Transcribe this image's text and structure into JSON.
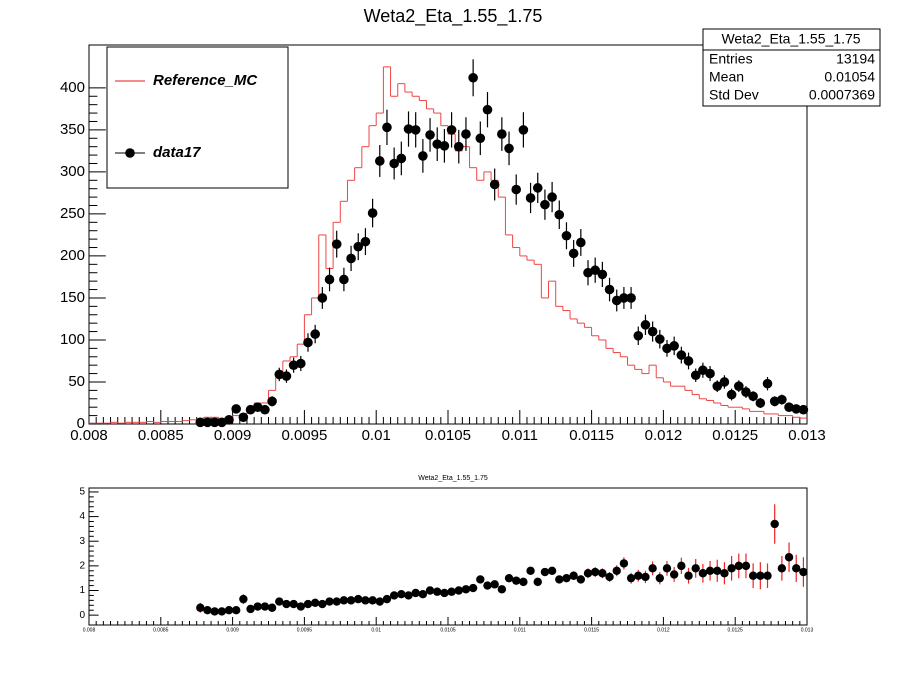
{
  "chart_data": [
    {
      "type": "hist_points",
      "title": "Weta2_Eta_1.55_1.75",
      "xlim": [
        0.008,
        0.013
      ],
      "xticks": [
        0.008,
        0.0085,
        0.009,
        0.0095,
        0.01,
        0.0105,
        0.011,
        0.0115,
        0.012,
        0.0125,
        0.013
      ],
      "ylim": [
        0,
        451
      ],
      "yticks": [
        0,
        50,
        100,
        150,
        200,
        250,
        300,
        350,
        400
      ],
      "legend": "top-left",
      "stats": {
        "title": "Weta2_Eta_1.55_1.75",
        "labels": [
          "Entries",
          "Mean",
          "Std Dev"
        ],
        "values": [
          13194,
          0.01054,
          0.0007369
        ]
      },
      "series": [
        {
          "name": "Reference_MC",
          "color": "#ee4444",
          "style": "step",
          "values": [
            1,
            1,
            1,
            2,
            1,
            2,
            2,
            2,
            3,
            2,
            3,
            3,
            3,
            4,
            5,
            6,
            8,
            8,
            6,
            7,
            10,
            12,
            15,
            25,
            25,
            40,
            55,
            75,
            80,
            95,
            130,
            150,
            225,
            185,
            240,
            265,
            290,
            305,
            330,
            355,
            370,
            425,
            390,
            405,
            395,
            390,
            385,
            375,
            370,
            355,
            345,
            325,
            330,
            305,
            290,
            300,
            290,
            270,
            225,
            210,
            200,
            195,
            190,
            150,
            170,
            140,
            135,
            125,
            120,
            115,
            105,
            100,
            90,
            85,
            80,
            70,
            65,
            60,
            70,
            55,
            50,
            45,
            45,
            40,
            35,
            30,
            28,
            25,
            22,
            20,
            20,
            18,
            15,
            15,
            12,
            12,
            10,
            10,
            8,
            7
          ]
        },
        {
          "name": "data17",
          "color": "#000000",
          "style": "points",
          "values": [
            null,
            null,
            null,
            null,
            null,
            null,
            null,
            null,
            null,
            null,
            null,
            null,
            null,
            null,
            null,
            2,
            2,
            2,
            2,
            5,
            18,
            8,
            17,
            20,
            17,
            27,
            59,
            57,
            70,
            72,
            97,
            107,
            150,
            172,
            214,
            172,
            197,
            211,
            217,
            251,
            313,
            353,
            310,
            316,
            351,
            350,
            319,
            344,
            333,
            331,
            350,
            330,
            345,
            412,
            340,
            374,
            285,
            345,
            328,
            279,
            350,
            269,
            281,
            261,
            270,
            249,
            224,
            203,
            216,
            180,
            183,
            178,
            160,
            147,
            150,
            150,
            105,
            118,
            110,
            101,
            90,
            93,
            82,
            75,
            58,
            64,
            60,
            45,
            50,
            35,
            45,
            38,
            33,
            25,
            48,
            27,
            29,
            20,
            18,
            17
          ],
          "errors": [
            null,
            null,
            null,
            null,
            null,
            null,
            null,
            null,
            null,
            null,
            null,
            null,
            null,
            null,
            null,
            2,
            2,
            2,
            2,
            2,
            5,
            3,
            5,
            5,
            5,
            6,
            8,
            8,
            9,
            9,
            11,
            11,
            13,
            14,
            16,
            14,
            15,
            16,
            16,
            17,
            19,
            21,
            19,
            20,
            21,
            21,
            20,
            20,
            20,
            20,
            21,
            20,
            20,
            22,
            20,
            21,
            19,
            20,
            20,
            18,
            21,
            18,
            18,
            18,
            18,
            17,
            16,
            16,
            16,
            15,
            15,
            15,
            14,
            13,
            13,
            13,
            11,
            12,
            12,
            11,
            10,
            11,
            10,
            10,
            8,
            9,
            9,
            7,
            8,
            7,
            7,
            7,
            6,
            6,
            8,
            6,
            6,
            5,
            5,
            5
          ]
        }
      ]
    },
    {
      "type": "ratio",
      "title": "Weta2_Eta_1.55_1.75",
      "xlim": [
        0.008,
        0.013
      ],
      "xticks": [
        0.008,
        0.0085,
        0.009,
        0.0095,
        0.01,
        0.0105,
        0.011,
        0.0115,
        0.012,
        0.0125,
        0.013
      ],
      "ylim": [
        -0.4,
        5.16
      ],
      "yticks": [
        0,
        1,
        2,
        3,
        4,
        5
      ],
      "series": [
        {
          "color": "#000000",
          "error_color": "#ee2222",
          "values": [
            null,
            null,
            null,
            null,
            null,
            null,
            null,
            null,
            null,
            null,
            null,
            null,
            null,
            null,
            null,
            0.3,
            0.2,
            0.15,
            0.15,
            0.2,
            0.2,
            0.65,
            0.25,
            0.35,
            0.35,
            0.3,
            0.55,
            0.45,
            0.45,
            0.35,
            0.45,
            0.5,
            0.45,
            0.55,
            0.55,
            0.6,
            0.6,
            0.65,
            0.6,
            0.6,
            0.55,
            0.65,
            0.8,
            0.85,
            0.8,
            0.9,
            0.85,
            1.0,
            0.95,
            0.9,
            0.95,
            1.0,
            1.05,
            1.1,
            1.45,
            1.2,
            1.25,
            1.05,
            1.5,
            1.4,
            1.35,
            1.8,
            1.35,
            1.75,
            1.8,
            1.45,
            1.5,
            1.6,
            1.45,
            1.7,
            1.75,
            1.7,
            1.55,
            1.8,
            2.1,
            1.5,
            1.6,
            1.55,
            1.9,
            1.5,
            1.9,
            1.65,
            2.0,
            1.6,
            1.9,
            1.7,
            1.8,
            1.8,
            1.7,
            1.9,
            2.0,
            2.0,
            1.6,
            1.6,
            1.6,
            3.7,
            1.9,
            2.35,
            1.9,
            1.75
          ],
          "errors": [
            null,
            null,
            null,
            null,
            null,
            null,
            null,
            null,
            null,
            null,
            null,
            null,
            null,
            null,
            null,
            0.2,
            0.15,
            0.1,
            0.1,
            0.1,
            0.1,
            0.2,
            0.1,
            0.1,
            0.1,
            0.1,
            0.1,
            0.08,
            0.08,
            0.06,
            0.06,
            0.06,
            0.05,
            0.05,
            0.05,
            0.05,
            0.05,
            0.05,
            0.05,
            0.05,
            0.05,
            0.05,
            0.06,
            0.06,
            0.06,
            0.06,
            0.06,
            0.07,
            0.07,
            0.07,
            0.07,
            0.07,
            0.08,
            0.08,
            0.1,
            0.09,
            0.1,
            0.09,
            0.12,
            0.12,
            0.12,
            0.15,
            0.13,
            0.16,
            0.16,
            0.15,
            0.16,
            0.18,
            0.17,
            0.2,
            0.2,
            0.2,
            0.2,
            0.22,
            0.25,
            0.22,
            0.24,
            0.25,
            0.28,
            0.25,
            0.3,
            0.3,
            0.33,
            0.32,
            0.38,
            0.38,
            0.4,
            0.45,
            0.45,
            0.5,
            0.5,
            0.5,
            0.5,
            0.55,
            0.5,
            0.8,
            0.5,
            0.6,
            0.55,
            0.6
          ]
        }
      ]
    }
  ]
}
